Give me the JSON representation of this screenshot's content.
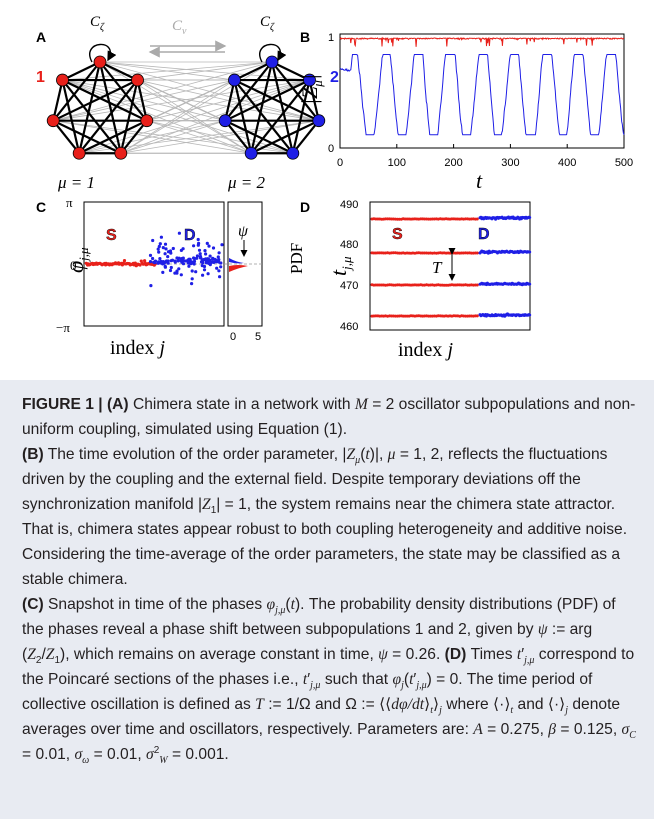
{
  "figure": {
    "panel_a": {
      "letter": "A",
      "self_coupling_label": "C",
      "self_coupling_sub": "ζ",
      "cross_coupling_label": "C",
      "cross_coupling_sub": "ν",
      "group1_label": "1",
      "group2_label": "2",
      "mu1_label": "μ = 1",
      "mu2_label": "μ = 2",
      "colors": {
        "group1": "#e8201a",
        "group2": "#1f1fe6",
        "edges": "#000000",
        "cross_edges": "#b8b8b8"
      }
    },
    "panel_b": {
      "letter": "B",
      "ylabel": "|Z",
      "ylabel_sub": "μ",
      "ylabel_close": "|",
      "xlabel": "t",
      "yticks": [
        "1",
        "0"
      ],
      "xticks": [
        "0",
        "100",
        "200",
        "300",
        "400",
        "500"
      ],
      "colors": {
        "series1": "#e8201a",
        "series2": "#1f1fe6"
      }
    },
    "panel_c": {
      "letter": "C",
      "ylabel": "φ",
      "ylabel_sub": "j,μ",
      "xlabel": "index",
      "xlabel_var": "j",
      "yticks": [
        "π",
        "0",
        "−π"
      ],
      "s_label": "S",
      "d_label": "D",
      "psi_label": "ψ",
      "pdf_label": "PDF",
      "pdf_ticks": [
        "0",
        "5"
      ]
    },
    "panel_d": {
      "letter": "D",
      "ylabel": "t",
      "ylabel_sub": "j,μ",
      "xlabel": "index",
      "xlabel_var": "j",
      "yticks": [
        "490",
        "480",
        "470",
        "460"
      ],
      "s_label": "S",
      "d_label": "D",
      "period_label": "T"
    }
  },
  "caption": {
    "label": "FIGURE 1 |",
    "a_tag": "(A)",
    "a_text_1": "Chimera state in a network with",
    "a_text_2": "oscillator subpopulations and non-uniform coupling, simulated using Equation (1).",
    "b_tag": "(B)",
    "b_text_1": "The time evolution of the order parameter,",
    "b_text_2": "reflects the fluctuations driven by the coupling and the external field. Despite temporary deviations off the synchronization manifold",
    "b_text_3": "the system remains near the chimera state attractor. That is, chimera states appear robust to both coupling heterogeneity and additive noise. Considering the time-average of the order parameters, the state may be classified as a stable chimera.",
    "c_tag": "(C)",
    "c_text_1": "Snapshot in time of the phases",
    "c_text_2": "The probability density distributions (PDF) of the phases reveal a phase shift between subpopulations 1 and 2, given by",
    "c_text_3": "which remains on average constant in time,",
    "d_tag": "(D)",
    "d_text_1": "Times",
    "d_text_2": "correspond to the Poincaré sections of the phases i.e.,",
    "d_text_3": "such that",
    "d_text_4": "The time period of collective oscillation is defined as",
    "d_text_5": "where",
    "d_text_6": "denote averages over time and oscillators, respectively. Parameters are:"
  }
}
